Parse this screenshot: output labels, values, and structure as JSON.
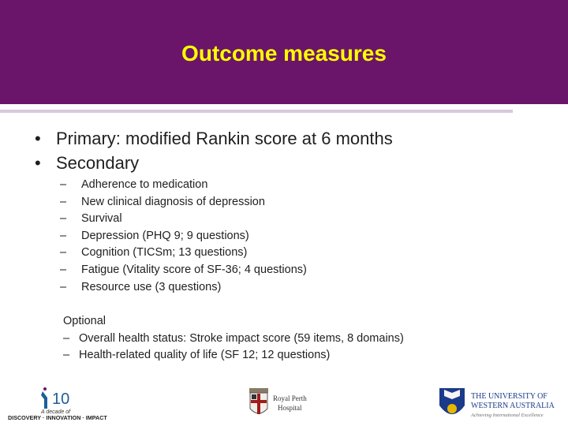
{
  "header": {
    "title": "Outcome measures",
    "colors": {
      "background": "#6a1569",
      "title": "#ffff00"
    }
  },
  "main_items": [
    {
      "bullet": "•",
      "text": "Primary: modified Rankin score at 6 months"
    },
    {
      "bullet": "•",
      "text": "Secondary"
    }
  ],
  "secondary_items": [
    "Adherence to medication",
    "New clinical diagnosis of depression",
    "Survival",
    "Depression (PHQ 9; 9 questions)",
    "Cognition (TICSm; 13 questions)",
    "Fatigue (Vitality score of SF-36; 4 questions)",
    "Resource use (3 questions)"
  ],
  "dash": "–",
  "optional": {
    "title": "Optional",
    "items": [
      "Overall health status: Stroke impact score (59 items, 8 domains)",
      "Health-related quality of life (SF 12; 12 questions)"
    ]
  },
  "logos": {
    "decade": {
      "number": "10",
      "line1": "A decade of",
      "line2": "DISCOVERY · INNOVATION · IMPACT"
    },
    "rph": {
      "line1": "Royal Perth",
      "line2": "Hospital"
    },
    "uwa": {
      "line1": "THE UNIVERSITY OF",
      "line2": "WESTERN AUSTRALIA",
      "tagline": "Achieving International Excellence"
    }
  }
}
